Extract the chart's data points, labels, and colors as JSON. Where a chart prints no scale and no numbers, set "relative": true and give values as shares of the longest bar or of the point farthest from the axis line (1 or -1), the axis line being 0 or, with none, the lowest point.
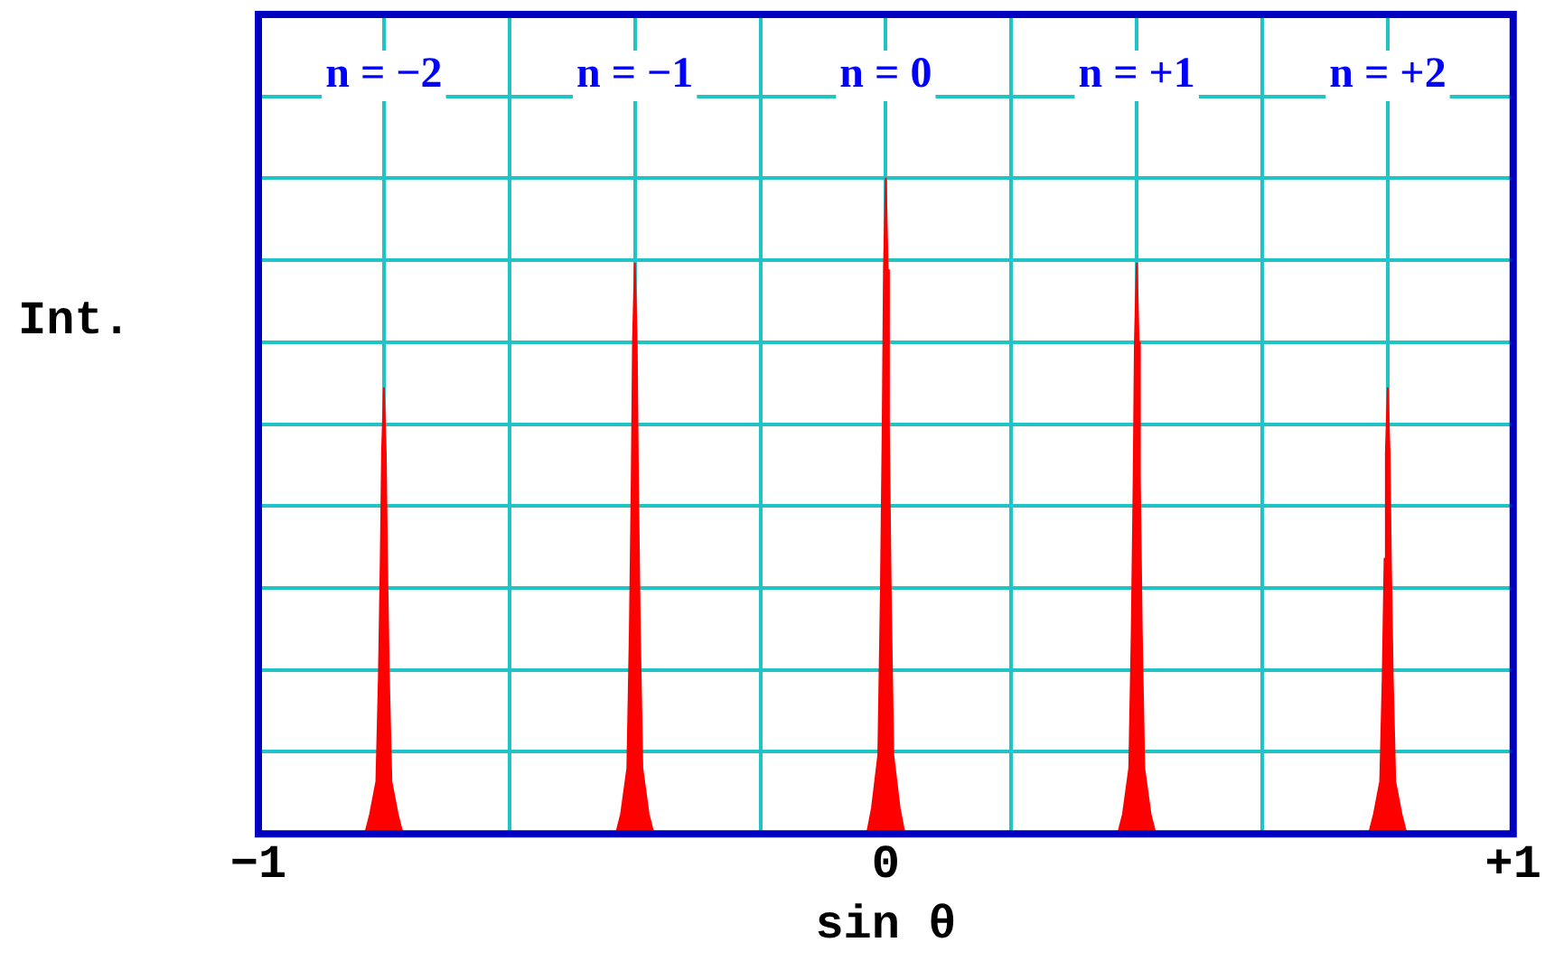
{
  "chart_data": {
    "type": "area",
    "relative": true,
    "xlabel": "sin θ",
    "ylabel": "Int.",
    "xlim": [
      -1,
      1
    ],
    "xticks": [
      {
        "value": -1,
        "label": "−1"
      },
      {
        "value": -0.8,
        "label": null
      },
      {
        "value": -0.6,
        "label": null
      },
      {
        "value": -0.4,
        "label": null
      },
      {
        "value": -0.2,
        "label": null
      },
      0,
      {
        "value": 0.2,
        "label": null
      },
      {
        "value": 0.4,
        "label": null
      },
      {
        "value": 0.6,
        "label": null
      },
      {
        "value": 0.8,
        "label": null
      },
      {
        "value": 1,
        "label": "+1"
      }
    ],
    "grid": true,
    "legend": false,
    "marker": "none",
    "annotations": [
      "n = −2",
      "n = −1",
      "n = 0",
      "n = +1",
      "n = +2"
    ],
    "series": [
      {
        "color": "#ff0000",
        "x": [
          -1,
          -0.83,
          -0.822,
          -0.812,
          -0.808,
          -0.805,
          -0.803,
          -0.8,
          -0.797,
          -0.795,
          -0.792,
          -0.788,
          -0.778,
          -0.77,
          -0.43,
          -0.422,
          -0.412,
          -0.408,
          -0.405,
          -0.403,
          -0.4,
          -0.397,
          -0.395,
          -0.392,
          -0.388,
          -0.378,
          -0.37,
          -0.03,
          -0.022,
          -0.012,
          -0.008,
          -0.005,
          -0.003,
          0,
          0.003,
          0.005,
          0.008,
          0.012,
          0.022,
          0.03,
          0.37,
          0.378,
          0.388,
          0.392,
          0.395,
          0.397,
          0.4,
          0.403,
          0.405,
          0.408,
          0.412,
          0.422,
          0.43,
          0.77,
          0.778,
          0.788,
          0.792,
          0.795,
          0.797,
          0.8,
          0.803,
          0.805,
          0.808,
          0.812,
          0.822,
          0.83,
          1
        ],
        "values": [
          0,
          0,
          0.03,
          0.08,
          0.24,
          0.42,
          0.58,
          0.68,
          0.58,
          0.42,
          0.24,
          0.08,
          0.03,
          0,
          0,
          0.03,
          0.1,
          0.31,
          0.54,
          0.75,
          0.87,
          0.75,
          0.54,
          0.31,
          0.1,
          0.03,
          0,
          0,
          0.04,
          0.12,
          0.36,
          0.62,
          0.86,
          1,
          0.86,
          0.62,
          0.36,
          0.12,
          0.04,
          0,
          0,
          0.03,
          0.1,
          0.31,
          0.54,
          0.75,
          0.87,
          0.75,
          0.54,
          0.31,
          0.1,
          0.03,
          0,
          0,
          0.03,
          0.08,
          0.24,
          0.42,
          0.58,
          0.68,
          0.58,
          0.42,
          0.24,
          0.08,
          0.03,
          0,
          0
        ]
      }
    ]
  }
}
